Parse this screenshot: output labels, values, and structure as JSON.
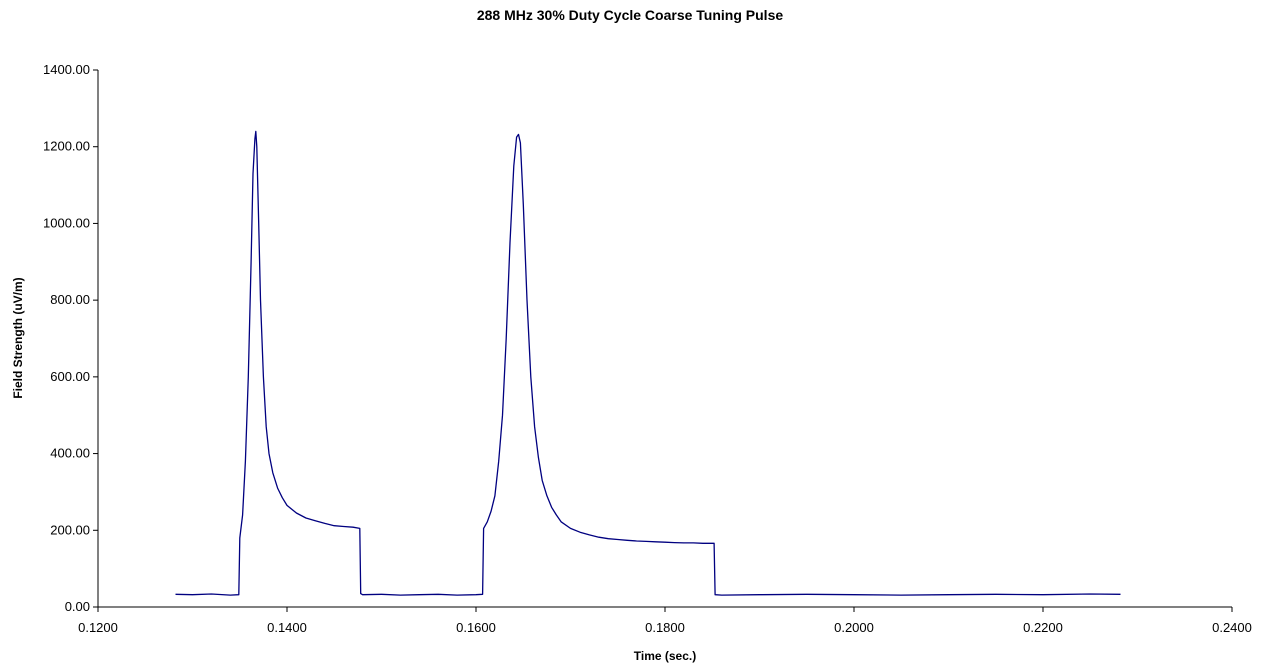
{
  "chart_data": {
    "type": "line",
    "title": "288 MHz 30% Duty Cycle Coarse Tuning Pulse",
    "xlabel": "Time (sec.)",
    "ylabel": "Field Strength (uV/m)",
    "xlim": [
      0.12,
      0.24
    ],
    "ylim": [
      0,
      1400
    ],
    "xticks": [
      0.12,
      0.14,
      0.16,
      0.18,
      0.2,
      0.22,
      0.24
    ],
    "xtick_labels": [
      "0.1200",
      "0.1400",
      "0.1600",
      "0.1800",
      "0.2000",
      "0.2200",
      "0.2400"
    ],
    "yticks": [
      0,
      200,
      400,
      600,
      800,
      1000,
      1200,
      1400
    ],
    "ytick_labels": [
      "0.00",
      "200.00",
      "400.00",
      "600.00",
      "800.00",
      "1000.00",
      "1200.00",
      "1400.00"
    ],
    "grid": false,
    "legend": "none",
    "series_color": "#000080",
    "series": [
      {
        "x": [
          0.1282,
          0.13,
          0.132,
          0.134,
          0.1349,
          0.135,
          0.1353,
          0.1356,
          0.1359,
          0.1362,
          0.1364,
          0.1366,
          0.1367,
          0.1368,
          0.137,
          0.1372,
          0.1375,
          0.1378,
          0.1381,
          0.1385,
          0.139,
          0.1395,
          0.14,
          0.141,
          0.142,
          0.143,
          0.144,
          0.145,
          0.146,
          0.147,
          0.1477,
          0.1478,
          0.148,
          0.15,
          0.152,
          0.154,
          0.156,
          0.158,
          0.16,
          0.1607,
          0.1608,
          0.1612,
          0.1616,
          0.162,
          0.1624,
          0.1628,
          0.1632,
          0.1636,
          0.164,
          0.1643,
          0.1645,
          0.1647,
          0.165,
          0.1654,
          0.1658,
          0.1662,
          0.1666,
          0.167,
          0.1675,
          0.168,
          0.1685,
          0.169,
          0.17,
          0.171,
          0.172,
          0.173,
          0.174,
          0.175,
          0.176,
          0.177,
          0.178,
          0.179,
          0.18,
          0.181,
          0.182,
          0.183,
          0.184,
          0.185,
          0.1852,
          0.1853,
          0.186,
          0.19,
          0.195,
          0.2,
          0.205,
          0.21,
          0.215,
          0.22,
          0.225,
          0.2282
        ],
        "y": [
          33,
          32,
          34,
          31,
          32,
          180,
          240,
          380,
          600,
          900,
          1130,
          1220,
          1240,
          1200,
          1000,
          800,
          600,
          470,
          400,
          350,
          310,
          285,
          265,
          245,
          232,
          225,
          218,
          212,
          210,
          208,
          205,
          35,
          32,
          33,
          31,
          32,
          33,
          31,
          32,
          33,
          205,
          222,
          250,
          290,
          380,
          500,
          700,
          950,
          1150,
          1225,
          1232,
          1210,
          1050,
          800,
          600,
          470,
          390,
          330,
          290,
          260,
          240,
          222,
          205,
          195,
          188,
          182,
          178,
          176,
          174,
          172,
          171,
          170,
          169,
          168,
          167,
          167,
          166,
          166,
          166,
          32,
          31,
          32,
          33,
          32,
          31,
          32,
          33,
          32,
          34,
          33
        ]
      }
    ]
  }
}
